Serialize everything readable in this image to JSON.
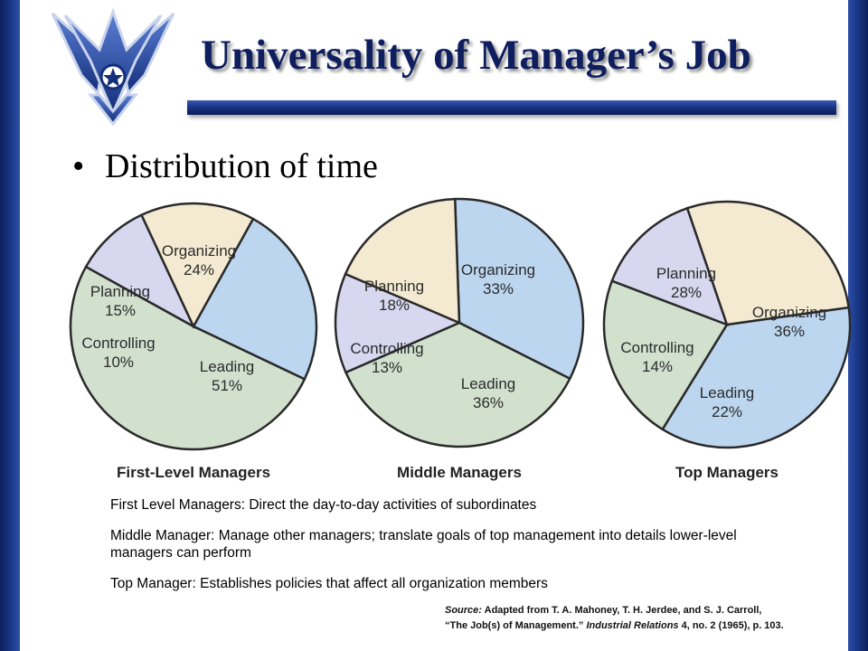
{
  "slide": {
    "title": "Universality of Manager’s Job",
    "bullet": "Distribution of time"
  },
  "colors": {
    "sidebar": "#1c3a8a",
    "title_bar": "#1a3486",
    "title_text": "#0e1e5e",
    "Planning": "#f3ead1",
    "Organizing": "#bcd6ef",
    "Leading": "#d1e1cd",
    "Controlling": "#d7d7ef"
  },
  "logo": {
    "icon": "air-force-wings-icon"
  },
  "chart_data": [
    {
      "type": "pie",
      "title": "First-Level Managers",
      "slices": [
        {
          "label": "Organizing",
          "value": 24
        },
        {
          "label": "Leading",
          "value": 51
        },
        {
          "label": "Controlling",
          "value": 10
        },
        {
          "label": "Planning",
          "value": 15
        }
      ]
    },
    {
      "type": "pie",
      "title": "Middle Managers",
      "slices": [
        {
          "label": "Organizing",
          "value": 33
        },
        {
          "label": "Leading",
          "value": 36
        },
        {
          "label": "Controlling",
          "value": 13
        },
        {
          "label": "Planning",
          "value": 18
        }
      ]
    },
    {
      "type": "pie",
      "title": "Top Managers",
      "slices": [
        {
          "label": "Organizing",
          "value": 36
        },
        {
          "label": "Leading",
          "value": 22
        },
        {
          "label": "Controlling",
          "value": 14
        },
        {
          "label": "Planning",
          "value": 28
        }
      ]
    }
  ],
  "descriptions": [
    "First Level Managers: Direct the day-to-day activities of subordinates",
    "Middle Manager: Manage other managers; translate goals of top management into details lower-level managers can  perform",
    "Top Manager: Establishes policies that affect all organization members"
  ],
  "source": {
    "label": "Source:",
    "line1": "Adapted from T. A. Mahoney, T. H. Jerdee, and S. J. Carroll,",
    "line2_pre": "“The Job(s) of Management.”",
    "journal": "Industrial Relations",
    "line2_post": "4, no. 2 (1965),  p. 103."
  }
}
